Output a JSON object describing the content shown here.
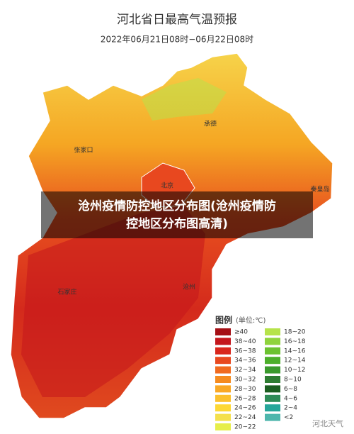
{
  "header": {
    "title": "河北省日最高气温预报",
    "subtitle": "2022年06月21日08时−06月22日08时"
  },
  "caption": [
    "沧州疫情防控地区分布图(沧州疫情防",
    "控地区分布图高清)"
  ],
  "places": [
    "承德",
    "张家口",
    "秦皇岛",
    "北京",
    "石家庄",
    "沧州"
  ],
  "legend": {
    "title": "图例",
    "unit": "(单位:℃)",
    "left": [
      {
        "label": "≥40",
        "color": "#a50f15"
      },
      {
        "label": "38~40",
        "color": "#c4161c"
      },
      {
        "label": "36~38",
        "color": "#d9261c"
      },
      {
        "label": "34~36",
        "color": "#e8481f"
      },
      {
        "label": "32~34",
        "color": "#f06a1f"
      },
      {
        "label": "30~32",
        "color": "#f58b1f"
      },
      {
        "label": "28~30",
        "color": "#f9a825"
      },
      {
        "label": "26~28",
        "color": "#fbc02d"
      },
      {
        "label": "24~26",
        "color": "#fdd835"
      },
      {
        "label": "22~24",
        "color": "#f4e04d"
      },
      {
        "label": "20~22",
        "color": "#e6ee4a"
      }
    ],
    "right": [
      {
        "label": "18~20",
        "color": "#b6e34a"
      },
      {
        "label": "16~18",
        "color": "#8fd33c"
      },
      {
        "label": "14~16",
        "color": "#6cc230"
      },
      {
        "label": "12~14",
        "color": "#4caf2a"
      },
      {
        "label": "10~12",
        "color": "#3a9a2c"
      },
      {
        "label": "8~10",
        "color": "#2e7d32"
      },
      {
        "label": "6~8",
        "color": "#1b5e20"
      },
      {
        "label": "4~6",
        "color": "#2e8b57"
      },
      {
        "label": "2~4",
        "color": "#26a69a"
      },
      {
        "label": "<2",
        "color": "#4db6ac"
      }
    ]
  },
  "watermark": "河北天气"
}
